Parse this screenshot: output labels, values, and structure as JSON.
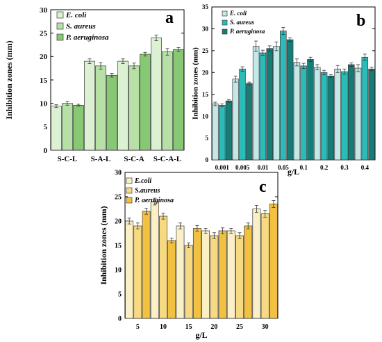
{
  "chart_data": [
    {
      "type": "bar",
      "panel_label": "a",
      "categories": [
        "S-C-L",
        "S-A-L",
        "S-C-A",
        "S-C-A-L"
      ],
      "series": [
        {
          "name": "E. coli",
          "values": [
            9.4,
            19.0,
            19.0,
            24.0
          ],
          "errors": [
            0.3,
            0.5,
            0.5,
            0.6
          ],
          "color": "#dcf0d2"
        },
        {
          "name": "S. aureus",
          "values": [
            10.0,
            18.0,
            18.0,
            21.0
          ],
          "errors": [
            0.4,
            0.7,
            0.6,
            0.7
          ],
          "color": "#b6e0a6"
        },
        {
          "name": "P. aeruginosa",
          "values": [
            9.6,
            16.0,
            20.5,
            21.5
          ],
          "errors": [
            0.2,
            0.4,
            0.4,
            0.4
          ],
          "color": "#86c874"
        }
      ],
      "ylabel": "Inhibition zones (mm)",
      "xlabel": "",
      "ylim": [
        0,
        30
      ],
      "yticks": [
        0,
        5,
        10,
        15,
        20,
        25,
        30
      ],
      "legend": "top-left"
    },
    {
      "type": "bar",
      "panel_label": "b",
      "categories": [
        "0.001",
        "0.005",
        "0.01",
        "0.05",
        "0.1",
        "0.2",
        "0.3",
        "0.4"
      ],
      "series": [
        {
          "name": "E. coli",
          "values": [
            12.8,
            18.5,
            26.0,
            26.0,
            22.3,
            21.2,
            20.8,
            21.0
          ],
          "errors": [
            0.4,
            0.7,
            1.2,
            1.0,
            0.8,
            0.6,
            0.8,
            0.8
          ],
          "color": "#c4e8e8"
        },
        {
          "name": "S. aureus",
          "values": [
            12.5,
            20.8,
            24.5,
            29.5,
            21.5,
            20.0,
            20.2,
            23.5
          ],
          "errors": [
            0.3,
            0.5,
            0.6,
            0.8,
            0.6,
            0.5,
            0.6,
            0.7
          ],
          "color": "#2cbcb8"
        },
        {
          "name": "P. aeruginosa",
          "values": [
            13.5,
            17.5,
            25.5,
            27.5,
            23.0,
            19.2,
            21.8,
            20.8
          ],
          "errors": [
            0.3,
            0.3,
            0.6,
            0.4,
            0.5,
            0.3,
            0.4,
            0.4
          ],
          "color": "#157c78"
        }
      ],
      "ylabel": "Inhibition zones (mm)",
      "xlabel": "g/L",
      "ylim": [
        0,
        35
      ],
      "yticks": [
        0,
        5,
        10,
        15,
        20,
        25,
        30,
        35
      ],
      "legend": "top-left"
    },
    {
      "type": "bar",
      "panel_label": "c",
      "categories": [
        "5",
        "10",
        "15",
        "20",
        "25",
        "30"
      ],
      "series": [
        {
          "name": "E.coli",
          "values": [
            20.0,
            24.0,
            19.0,
            18.0,
            18.0,
            22.5
          ],
          "errors": [
            0.6,
            0.7,
            0.6,
            0.5,
            0.5,
            0.7
          ],
          "color": "#fbefc6"
        },
        {
          "name": "S.aureus",
          "values": [
            19.0,
            21.0,
            15.0,
            17.0,
            17.0,
            21.5
          ],
          "errors": [
            0.6,
            0.6,
            0.5,
            0.6,
            0.6,
            0.7
          ],
          "color": "#f7d981"
        },
        {
          "name": "P. aeruginosa",
          "values": [
            22.0,
            16.0,
            18.5,
            18.0,
            19.0,
            23.5
          ],
          "errors": [
            0.6,
            0.5,
            0.6,
            0.6,
            0.6,
            0.7
          ],
          "color": "#f2c13f"
        }
      ],
      "ylabel": "Inhibition zones (mm)",
      "xlabel": "g/L",
      "ylim": [
        0,
        30
      ],
      "yticks": [
        0,
        5,
        10,
        15,
        20,
        25,
        30
      ],
      "legend": "top-left"
    }
  ]
}
